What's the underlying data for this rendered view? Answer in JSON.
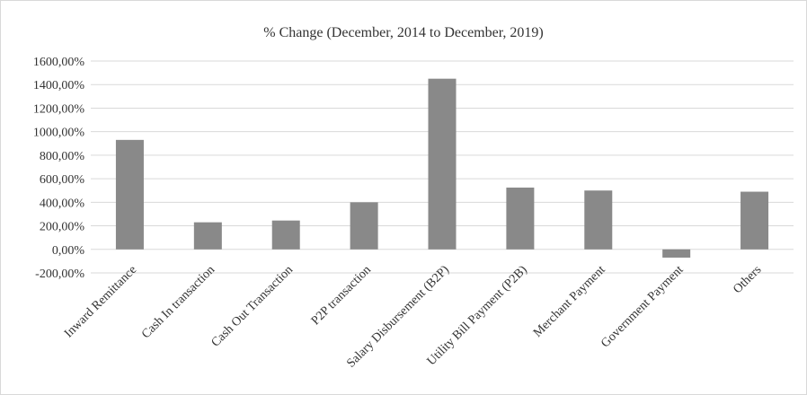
{
  "chart_data": {
    "type": "bar",
    "title": "% Change (December, 2014 to December, 2019)",
    "xlabel": "",
    "ylabel": "",
    "categories": [
      "Inward Remittance",
      "Cash In transaction",
      "Cash Out Transaction",
      "P2P transaction",
      "Salary Disbursement (B2P)",
      "Utility Bill Payment (P2B)",
      "Merchant Payment",
      "Government Payment",
      "Others"
    ],
    "values": [
      930,
      230,
      245,
      400,
      1450,
      525,
      500,
      -70,
      490
    ],
    "ylim": [
      -200,
      1600
    ],
    "yticks": [
      -200,
      0,
      200,
      400,
      600,
      800,
      1000,
      1200,
      1400,
      1600
    ],
    "ytick_labels": [
      "-200,00%",
      "0,00%",
      "200,00%",
      "400,00%",
      "600,00%",
      "800,00%",
      "1000,00%",
      "1200,00%",
      "1400,00%",
      "1600,00%"
    ],
    "grid": true,
    "legend": "none",
    "bar_color": "#898989"
  }
}
